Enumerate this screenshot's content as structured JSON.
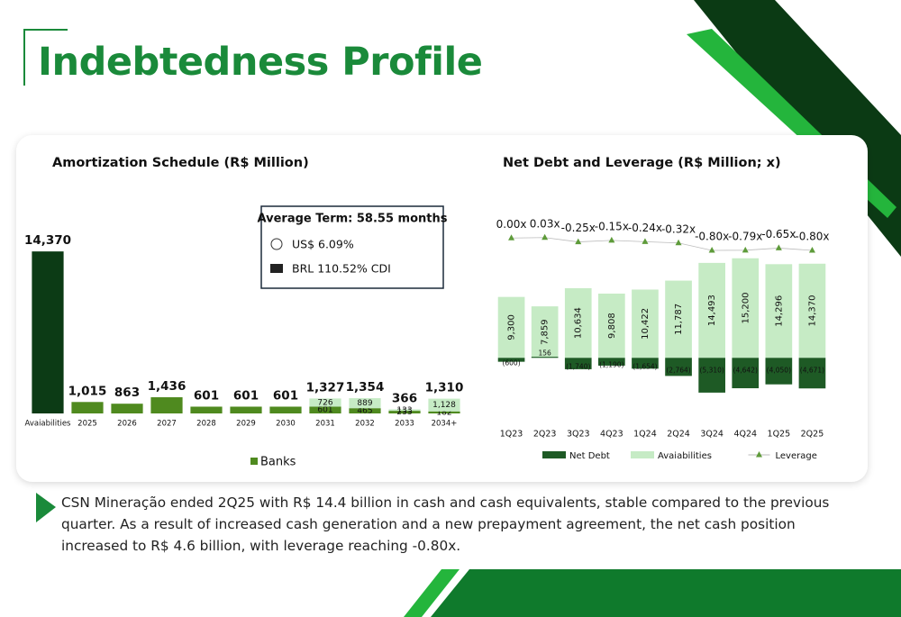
{
  "title": "Indebtedness Profile",
  "info_box": {
    "title": "Average Term: 58.55 months",
    "items": [
      "US$ 6.09%",
      "BRL 110.52% CDI"
    ]
  },
  "note": "CSN Mineração ended 2Q25 with R$ 14.4 billion in cash and cash equivalents, stable compared to the previous quarter. As a result of increased cash generation and a new prepayment agreement, the net cash position increased to R$ 4.6 billion, with leverage reaching -0.80x.",
  "chart_data": [
    {
      "type": "stacked_bar",
      "title": "Amortization Schedule (R$ Million)",
      "categories": [
        "Avaiabilities",
        "2025",
        "2026",
        "2027",
        "2028",
        "2029",
        "2030",
        "2031",
        "2032",
        "2033",
        "2034+"
      ],
      "ylim": [
        0,
        15500
      ],
      "totals": [
        14370,
        1015,
        863,
        1436,
        601,
        601,
        601,
        1327,
        1354,
        366,
        1310
      ],
      "total_labels": [
        "14,370",
        "1,015",
        "863",
        "1,436",
        "601",
        "601",
        "601",
        "1,327",
        "1,354",
        "366",
        "1,310"
      ],
      "series": [
        {
          "name": "Banks",
          "color": "#4f8a1f",
          "colors": [
            "#0c3b15",
            "#4f8a1f",
            "#4f8a1f",
            "#4f8a1f",
            "#4f8a1f",
            "#4f8a1f",
            "#4f8a1f",
            "#4f8a1f",
            "#4f8a1f",
            "#4f8a1f",
            "#4f8a1f"
          ],
          "values": [
            14370,
            1015,
            863,
            1436,
            601,
            601,
            601,
            601,
            465,
            233,
            182
          ],
          "value_labels": [
            null,
            null,
            null,
            null,
            null,
            null,
            null,
            "601",
            "465",
            "233",
            "182"
          ]
        },
        {
          "color": "#c6ebc5",
          "values": [
            null,
            null,
            null,
            null,
            null,
            null,
            null,
            726,
            889,
            133,
            1128
          ],
          "value_labels": [
            null,
            null,
            null,
            null,
            null,
            null,
            null,
            "726",
            "889",
            "133",
            "1,128"
          ]
        }
      ]
    },
    {
      "type": "bar_line",
      "title": "Net Debt and Leverage (R$ Million; x)",
      "categories": [
        "1Q23",
        "2Q23",
        "3Q23",
        "4Q23",
        "1Q24",
        "2Q24",
        "3Q24",
        "4Q24",
        "1Q25",
        "2Q25"
      ],
      "ylim": [
        -10000,
        23000
      ],
      "y2lim": [
        -12,
        2
      ],
      "series": [
        {
          "name": "Avaiabilities",
          "type": "bar",
          "color": "#c6ebc5",
          "values": [
            9300,
            7859,
            10634,
            9808,
            10422,
            11787,
            14493,
            15200,
            14296,
            14370
          ],
          "value_labels": [
            "9,300",
            "7,859",
            "10,634",
            "9,808",
            "10,422",
            "11,787",
            "14,493",
            "15,200",
            "14,296",
            "14,370"
          ]
        },
        {
          "name": "Net Debt",
          "type": "bar",
          "color": "#1e5a25",
          "values": [
            -600,
            156,
            -1740,
            -1190,
            -1654,
            -2764,
            -5310,
            -4642,
            -4050,
            -4671
          ],
          "value_labels": [
            "(600)",
            "156",
            "(1,740)",
            "(1,190)",
            "(1,654)",
            "(2,764)",
            "(5,310)",
            "(4,642)",
            "(4,050)",
            "(4,671)"
          ]
        },
        {
          "name": "Leverage",
          "type": "line",
          "axis": "y2",
          "color": "#5e9b3a",
          "values": [
            0.0,
            0.03,
            -0.25,
            -0.15,
            -0.24,
            -0.32,
            -0.8,
            -0.79,
            -0.65,
            -0.8
          ],
          "value_labels": [
            "0.00x",
            "0.03x",
            "-0.25x",
            "-0.15x",
            "-0.24x",
            "-0.32x",
            "-0.80x",
            "-0.79x",
            "-0.65x",
            "-0.80x"
          ]
        }
      ],
      "legend_order": [
        1,
        0,
        2
      ]
    }
  ]
}
